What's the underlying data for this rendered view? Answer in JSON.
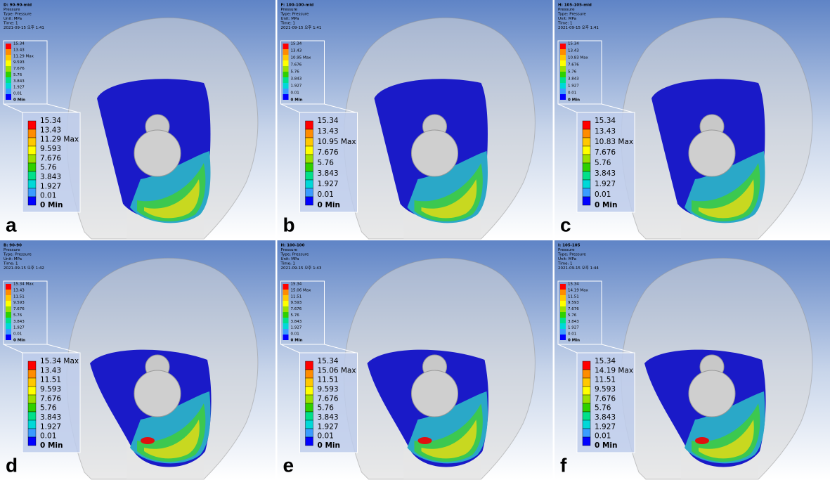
{
  "panels": [
    {
      "letter": "a",
      "header": [
        "D: 90-90-mid",
        "Pressure",
        "Type: Pressure",
        "Unit: MPa",
        "Time: 1",
        "2021-09-15 오후 1:41"
      ],
      "legend": [
        "15.34",
        "13.43",
        "11.29 Max",
        "9.593",
        "7.676",
        "5.76",
        "3.843",
        "1.927",
        "0.01",
        "0 Min"
      ]
    },
    {
      "letter": "b",
      "header": [
        "F: 100-100-mid",
        "Pressure",
        "Type: Pressure",
        "Unit: MPa",
        "Time: 1",
        "2021-09-15 오후 1:41"
      ],
      "legend": [
        "15.34",
        "13.43",
        "10.95 Max",
        "7.676",
        "5.76",
        "3.843",
        "1.927",
        "0.01",
        "0 Min"
      ]
    },
    {
      "letter": "c",
      "header": [
        "H: 105-105-mid",
        "Pressure",
        "Type: Pressure",
        "Unit: MPa",
        "Time: 1",
        "2021-09-15 오후 1:41"
      ],
      "legend": [
        "15.34",
        "13.43",
        "10.83 Max",
        "7.676",
        "5.76",
        "3.843",
        "1.927",
        "0.01",
        "0 Min"
      ]
    },
    {
      "letter": "d",
      "header": [
        "B: 90-90",
        "Pressure",
        "Type: Pressure",
        "Unit: MPa",
        "Time: 1",
        "2021-09-15 오후 1:42"
      ],
      "legend": [
        "15.34 Max",
        "13.43",
        "11.51",
        "9.593",
        "7.676",
        "5.76",
        "3.843",
        "1.927",
        "0.01",
        "0 Min"
      ]
    },
    {
      "letter": "e",
      "header": [
        "H: 100-100",
        "Pressure",
        "Type: Pressure",
        "Unit: MPa",
        "Time: 1",
        "2021-09-15 오후 1:43"
      ],
      "legend": [
        "15.34",
        "15.06 Max",
        "11.51",
        "9.593",
        "7.676",
        "5.76",
        "3.843",
        "1.927",
        "0.01",
        "0 Min"
      ]
    },
    {
      "letter": "f",
      "header": [
        "I: 105-105",
        "Pressure",
        "Type: Pressure",
        "Unit: MPa",
        "Time: 1",
        "2021-09-15 오후 1:44"
      ],
      "legend": [
        "15.34",
        "14.19 Max",
        "11.51",
        "9.593",
        "7.676",
        "5.76",
        "3.843",
        "1.927",
        "0.01",
        "0 Min"
      ]
    }
  ]
}
